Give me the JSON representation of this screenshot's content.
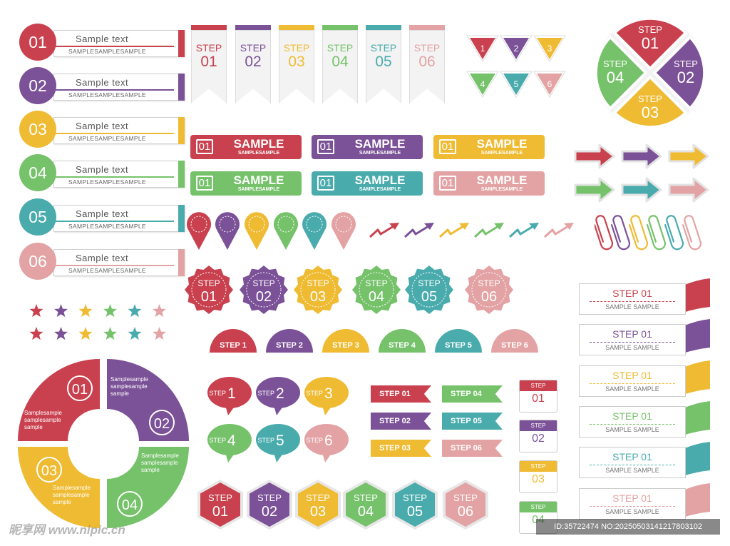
{
  "colors": {
    "red": "#c9414e",
    "purple": "#7b5197",
    "yellow": "#efbb33",
    "green": "#76c26b",
    "teal": "#4aabad",
    "pink": "#e3a3a4"
  },
  "number_rows": [
    {
      "num": "01",
      "title": "Sample text",
      "sub": "SAMPLESAMPLESAMPLE"
    },
    {
      "num": "02",
      "title": "Sample text",
      "sub": "SAMPLESAMPLESAMPLE"
    },
    {
      "num": "03",
      "title": "Sample text",
      "sub": "SAMPLESAMPLESAMPLE"
    },
    {
      "num": "04",
      "title": "Sample text",
      "sub": "SAMPLESAMPLESAMPLE"
    },
    {
      "num": "05",
      "title": "Sample text",
      "sub": "SAMPLESAMPLESAMPLE"
    },
    {
      "num": "06",
      "title": "Sample text",
      "sub": "SAMPLESAMPLESAMPLE"
    }
  ],
  "bookmarks": [
    {
      "step": "STEP",
      "num": "01"
    },
    {
      "step": "STEP",
      "num": "02"
    },
    {
      "step": "STEP",
      "num": "03"
    },
    {
      "step": "STEP",
      "num": "04"
    },
    {
      "step": "STEP",
      "num": "05"
    },
    {
      "step": "STEP",
      "num": "06"
    }
  ],
  "triangles": [
    "1",
    "2",
    "3",
    "4",
    "5",
    "6"
  ],
  "pie": [
    {
      "step": "STEP",
      "num": "01"
    },
    {
      "step": "STEP",
      "num": "02"
    },
    {
      "step": "STEP",
      "num": "03"
    },
    {
      "step": "STEP",
      "num": "04"
    }
  ],
  "sample_bars": [
    {
      "num": "01",
      "title": "SAMPLE",
      "sub": "SAMPLESAMPLE"
    },
    {
      "num": "01",
      "title": "SAMPLE",
      "sub": "SAMPLESAMPLE"
    },
    {
      "num": "01",
      "title": "SAMPLE",
      "sub": "SAMPLESAMPLE"
    },
    {
      "num": "01",
      "title": "SAMPLE",
      "sub": "SAMPLESAMPLE"
    },
    {
      "num": "01",
      "title": "SAMPLE",
      "sub": "SAMPLESAMPLE"
    },
    {
      "num": "01",
      "title": "SAMPLE",
      "sub": "SAMPLESAMPLE"
    }
  ],
  "badges": [
    {
      "step": "STEP",
      "num": "01"
    },
    {
      "step": "STEP",
      "num": "02"
    },
    {
      "step": "STEP",
      "num": "03"
    },
    {
      "step": "STEP",
      "num": "04"
    },
    {
      "step": "STEP",
      "num": "05"
    },
    {
      "step": "STEP",
      "num": "06"
    }
  ],
  "domes": [
    "STEP 1",
    "STEP 2",
    "STEP 3",
    "STEP 4",
    "STEP 5",
    "STEP 6"
  ],
  "ring": [
    {
      "num": "01",
      "text": "Samplesample samplesample sample"
    },
    {
      "num": "02",
      "text": "Samplesample samplesample sample"
    },
    {
      "num": "03",
      "text": "Samplesample samplesample sample"
    },
    {
      "num": "04",
      "text": "Samplesample samplesample sample"
    }
  ],
  "bubbles": [
    {
      "step": "STEP",
      "num": "1"
    },
    {
      "step": "STEP",
      "num": "2"
    },
    {
      "step": "STEP",
      "num": "3"
    },
    {
      "step": "STEP",
      "num": "4"
    },
    {
      "step": "STEP",
      "num": "5"
    },
    {
      "step": "STEP",
      "num": "6"
    }
  ],
  "flags": [
    "STEP 01",
    "STEP 04",
    "STEP 02",
    "STEP 05",
    "STEP 03",
    "STEP 06"
  ],
  "cal_tabs": [
    {
      "step": "STEP",
      "num": "01"
    },
    {
      "step": "STEP",
      "num": "02"
    },
    {
      "step": "STEP",
      "num": "03"
    },
    {
      "step": "STEP",
      "num": "04"
    }
  ],
  "right_cards": [
    {
      "title": "STEP 01",
      "sub": "SAMPLE SAMPLE"
    },
    {
      "title": "STEP 01",
      "sub": "SAMPLE SAMPLE"
    },
    {
      "title": "STEP 01",
      "sub": "SAMPLE SAMPLE"
    },
    {
      "title": "STEP 01",
      "sub": "SAMPLE SAMPLE"
    },
    {
      "title": "STEP 01",
      "sub": "SAMPLE SAMPLE"
    },
    {
      "title": "STEP 01",
      "sub": "SAMPLE SAMPLE"
    }
  ],
  "hexagons": [
    {
      "step": "STEP",
      "num": "01"
    },
    {
      "step": "STEP",
      "num": "02"
    },
    {
      "step": "STEP",
      "num": "03"
    },
    {
      "step": "STEP",
      "num": "04"
    },
    {
      "step": "STEP",
      "num": "05"
    },
    {
      "step": "STEP",
      "num": "06"
    }
  ],
  "watermark": {
    "logo": "昵享网 www.nipic.cn",
    "id": "ID:35722474 NO:20250503141217803102"
  }
}
